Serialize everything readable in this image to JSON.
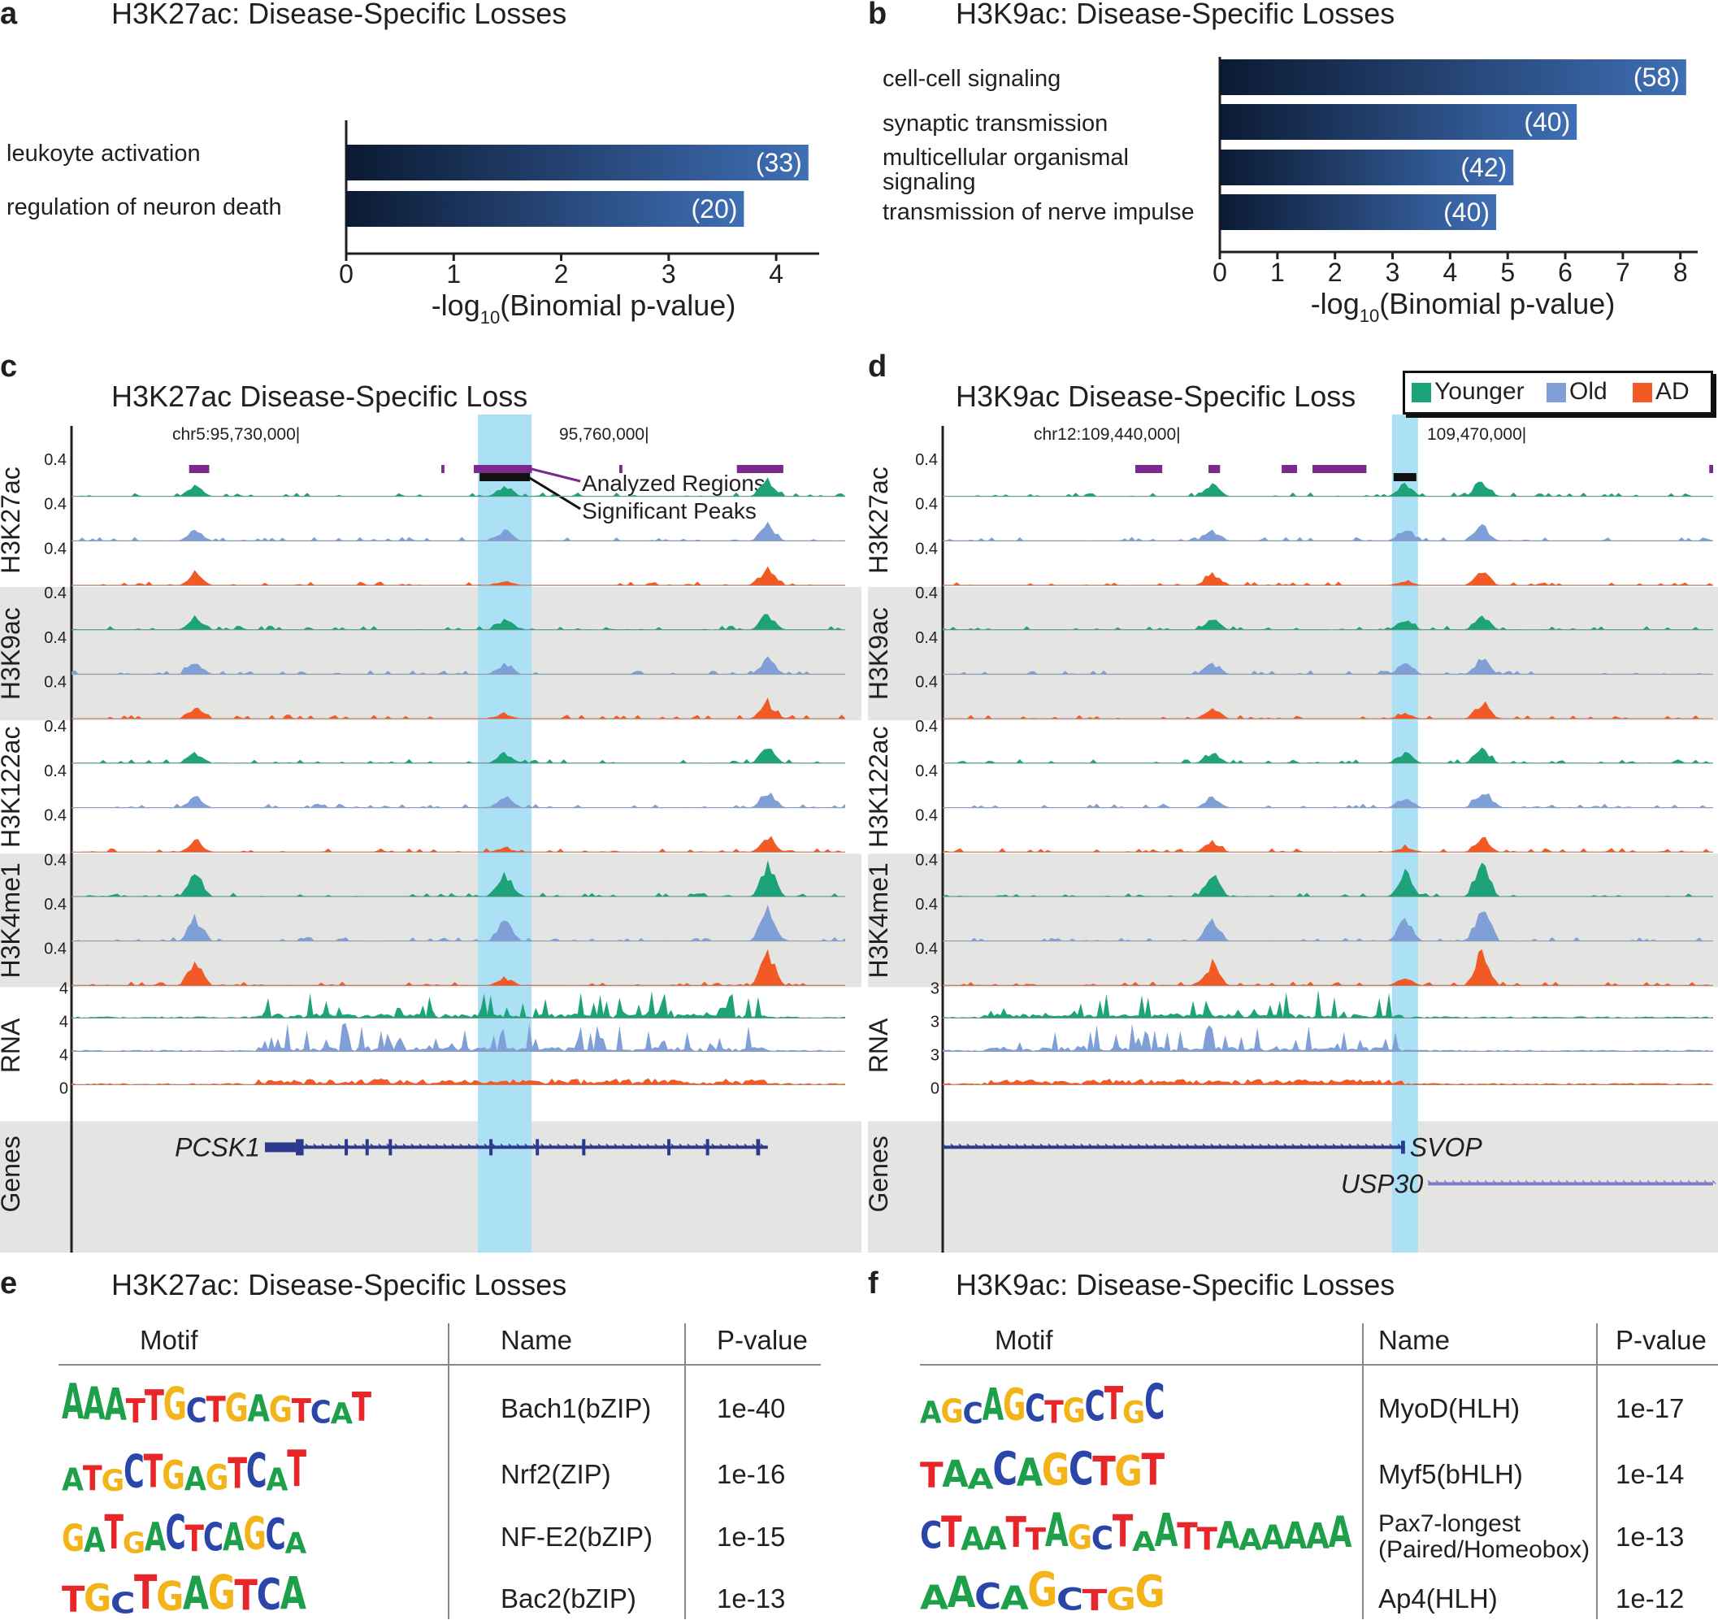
{
  "panels": {
    "a": {
      "letter": "a",
      "title": "H3K27ac: Disease-Specific Losses"
    },
    "b": {
      "letter": "b",
      "title": "H3K9ac: Disease-Specific Losses"
    },
    "c": {
      "letter": "c",
      "title": "H3K27ac Disease-Specific Loss"
    },
    "d": {
      "letter": "d",
      "title": "H3K9ac Disease-Specific Loss"
    },
    "e": {
      "letter": "e",
      "title": "H3K27ac: Disease-Specific Losses"
    },
    "f": {
      "letter": "f",
      "title": "H3K9ac: Disease-Specific Losses"
    }
  },
  "chart_data": [
    {
      "panel": "a",
      "type": "bar",
      "orientation": "horizontal",
      "title": "H3K27ac: Disease-Specific Losses",
      "categories": [
        "leukoyte activation",
        "regulation of neuron death"
      ],
      "values": [
        4.3,
        3.7
      ],
      "counts": [
        "(33)",
        "(20)"
      ],
      "xlabel": "-log",
      "xlabel_sub": "10",
      "xlabel_rest": "(Binomial p-value)",
      "xlim": [
        0,
        4.4
      ],
      "xticks": [
        0,
        1,
        2,
        3,
        4
      ],
      "colors": {
        "bar_start": "#0b1a33",
        "bar_end": "#3f6fb5"
      }
    },
    {
      "panel": "b",
      "type": "bar",
      "orientation": "horizontal",
      "title": "H3K9ac: Disease-Specific Losses",
      "categories": [
        "cell-cell signaling",
        "synaptic transmission",
        "multicellular organismal signaling",
        "transmission of nerve impulse"
      ],
      "values": [
        8.1,
        6.2,
        5.1,
        4.8
      ],
      "counts": [
        "(58)",
        "(40)",
        "(42)",
        "(40)"
      ],
      "xlabel": "-log",
      "xlabel_sub": "10",
      "xlabel_rest": "(Binomial p-value)",
      "xlim": [
        0,
        8.3
      ],
      "xticks": [
        0,
        1,
        2,
        3,
        4,
        5,
        6,
        7,
        8
      ],
      "colors": {
        "bar_start": "#0b1a33",
        "bar_end": "#3f6fb5"
      }
    },
    {
      "panel": "c",
      "type": "area",
      "title": "H3K27ac Disease-Specific Loss",
      "coord_left": "chr5:95,730,000|",
      "coord_right": "95,760,000|",
      "annotations": [
        "Analyzed Regions",
        "Significant Peaks"
      ],
      "marks": [
        "H3K27ac",
        "H3K9ac",
        "H3K122ac",
        "H3K4me1"
      ],
      "rna_label": "RNA",
      "genes_label": "Genes",
      "scale_label": "0.4",
      "rna_scale": "4",
      "rna_zero": "0",
      "gene_names": [
        "PCSK1"
      ],
      "peaks": [
        0.16,
        0.56,
        0.9
      ],
      "loss_peak": 0.56
    },
    {
      "panel": "d",
      "type": "area",
      "title": "H3K9ac Disease-Specific Loss",
      "coord_left": "chr12:109,440,000|",
      "coord_right": "109,470,000|",
      "marks": [
        "H3K27ac",
        "H3K9ac",
        "H3K122ac",
        "H3K4me1"
      ],
      "rna_label": "RNA",
      "genes_label": "Genes",
      "scale_label": "0.4",
      "rna_scale": "3",
      "rna_zero": "0",
      "gene_names": [
        "SVOP",
        "USP30"
      ],
      "peaks": [
        0.35,
        0.6,
        0.7
      ],
      "loss_peak": 0.6
    }
  ],
  "legend": {
    "items": [
      {
        "label": "Younger",
        "color": "#1ea27a"
      },
      {
        "label": "Old",
        "color": "#7f9fd6"
      },
      {
        "label": "AD",
        "color": "#f15a24"
      }
    ]
  },
  "colors": {
    "highlight": "#abe0f5",
    "shade": "#e4e4e2",
    "region": "#7a2a8c",
    "gene": "#2b3a8c"
  },
  "motif_tables": {
    "e": {
      "headers": {
        "motif": "Motif",
        "name": "Name",
        "pvalue": "P-value"
      },
      "rows": [
        {
          "logo": "AAATTGCTGAGTCAT",
          "name": "Bach1(bZIP)",
          "pvalue": "1e-40"
        },
        {
          "logo": "ATGCTGAGTCAT",
          "name": "Nrf2(ZIP)",
          "pvalue": "1e-16"
        },
        {
          "logo": "GATGACTCAGCA",
          "name": "NF-E2(bZIP)",
          "pvalue": "1e-15"
        },
        {
          "logo": "TGCTGAGTCA",
          "name": "Bac2(bZIP)",
          "pvalue": "1e-13"
        }
      ]
    },
    "f": {
      "headers": {
        "motif": "Motif",
        "name": "Name",
        "pvalue": "P-value"
      },
      "rows": [
        {
          "logo": "AGCAGCTGCTGC",
          "name": "MyoD(HLH)",
          "pvalue": "1e-17"
        },
        {
          "logo": "TAACAGCTGT",
          "name": "Myf5(bHLH)",
          "pvalue": "1e-14"
        },
        {
          "logo": "CTAATTAGCTAATTAAAAAA",
          "name": "Pax7-longest",
          "name2": "(Paired/Homeobox)",
          "pvalue": "1e-13"
        },
        {
          "logo": "AACAGCTGG",
          "name": "Ap4(HLH)",
          "pvalue": "1e-12"
        }
      ]
    }
  }
}
